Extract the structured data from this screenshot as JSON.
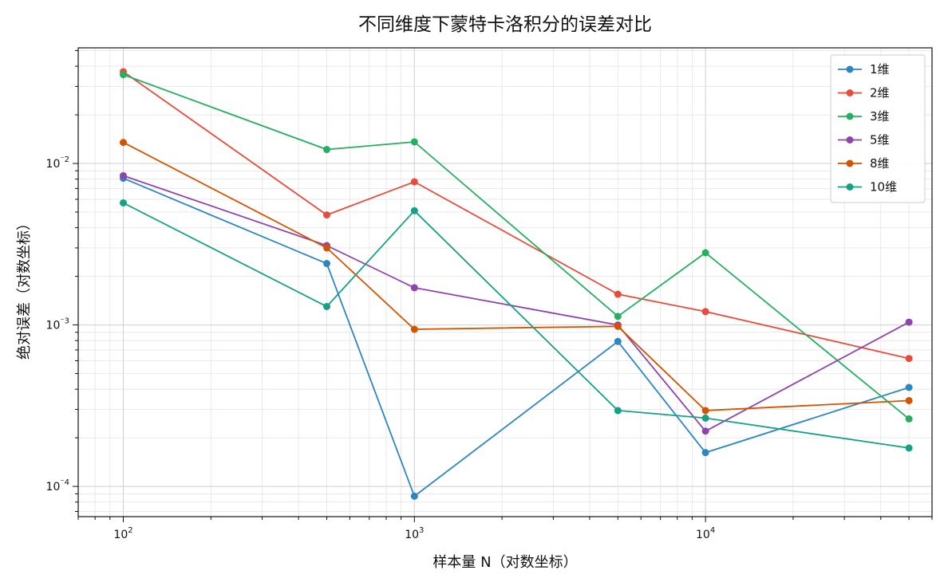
{
  "chart_data": {
    "type": "line",
    "title": "不同维度下蒙特卡洛积分的误差对比",
    "xlabel": "样本量 N（对数坐标）",
    "ylabel": "绝对误差（对数坐标）",
    "xscale": "log",
    "yscale": "log",
    "xlim": [
      70,
      60000
    ],
    "ylim": [
      6.5e-05,
      0.052
    ],
    "x": [
      100,
      500,
      1000,
      5000,
      10000,
      50000
    ],
    "x_ticks": [
      {
        "value": 100,
        "base": "10",
        "exp": "2"
      },
      {
        "value": 1000,
        "base": "10",
        "exp": "3"
      },
      {
        "value": 10000,
        "base": "10",
        "exp": "4"
      }
    ],
    "y_ticks": [
      {
        "value": 0.01,
        "base": "10",
        "exp": "⁻2"
      },
      {
        "value": 0.001,
        "base": "10",
        "exp": "⁻3"
      },
      {
        "value": 0.0001,
        "base": "10",
        "exp": "⁻4"
      }
    ],
    "grid": true,
    "legend_position": "top-right",
    "series": [
      {
        "name": "1维",
        "color": "#2e86c1",
        "values": [
          0.0081,
          0.0024,
          8.7e-05,
          0.00079,
          0.000162,
          0.00041
        ]
      },
      {
        "name": "2维",
        "color": "#e74c3c",
        "values": [
          0.037,
          0.0048,
          0.0077,
          0.00155,
          0.00121,
          0.00062
        ]
      },
      {
        "name": "3维",
        "color": "#27ae60",
        "values": [
          0.0355,
          0.0122,
          0.0136,
          0.00113,
          0.0028,
          0.000262
        ]
      },
      {
        "name": "5维",
        "color": "#8e44ad",
        "values": [
          0.0084,
          0.0031,
          0.0017,
          0.001,
          0.00022,
          0.00104
        ]
      },
      {
        "name": "8维",
        "color": "#d35400",
        "values": [
          0.0135,
          0.003,
          0.00094,
          0.00098,
          0.000295,
          0.00034
        ]
      },
      {
        "name": "10维",
        "color": "#16a085",
        "values": [
          0.0057,
          0.0013,
          0.0051,
          0.000295,
          0.000265,
          0.000173
        ]
      }
    ]
  }
}
